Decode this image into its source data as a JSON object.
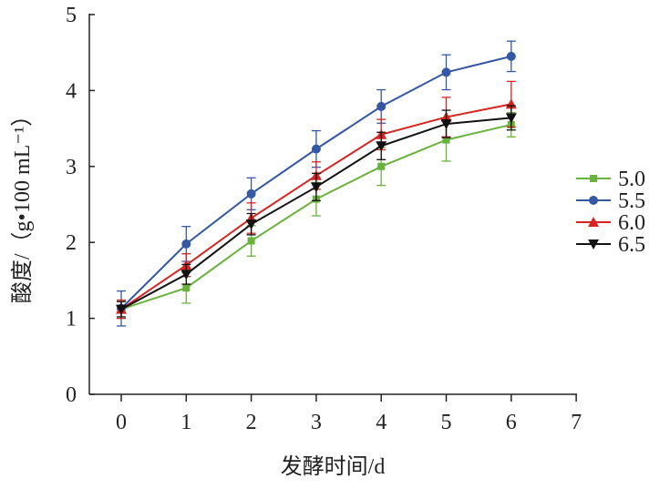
{
  "chart_data": {
    "type": "line",
    "title": "",
    "xlabel": "发酵时间/d",
    "ylabel": "酸度/（g•100 mL⁻¹）",
    "xlim": [
      0,
      7
    ],
    "ylim": [
      0,
      5
    ],
    "x_ticks": [
      "0",
      "1",
      "2",
      "3",
      "4",
      "5",
      "6",
      "7"
    ],
    "y_ticks": [
      "0",
      "1",
      "2",
      "3",
      "4",
      "5"
    ],
    "grid": false,
    "legend_position": "right",
    "x": [
      0,
      1,
      2,
      3,
      4,
      5,
      6
    ],
    "series": [
      {
        "name": "5.0",
        "color": "#6ab23e",
        "marker": "square",
        "values": [
          1.12,
          1.4,
          2.02,
          2.57,
          3.0,
          3.35,
          3.55
        ],
        "errors": [
          0.12,
          0.2,
          0.2,
          0.22,
          0.25,
          0.28,
          0.16
        ]
      },
      {
        "name": "5.5",
        "color": "#3457a6",
        "marker": "circle",
        "values": [
          1.13,
          1.98,
          2.64,
          3.23,
          3.79,
          4.24,
          4.45
        ],
        "errors": [
          0.23,
          0.23,
          0.21,
          0.24,
          0.22,
          0.23,
          0.2
        ]
      },
      {
        "name": "6.0",
        "color": "#d8231f",
        "marker": "triangle-up",
        "values": [
          1.12,
          1.7,
          2.32,
          2.88,
          3.42,
          3.65,
          3.82
        ],
        "errors": [
          0.12,
          0.15,
          0.2,
          0.18,
          0.2,
          0.26,
          0.3
        ]
      },
      {
        "name": "6.5",
        "color": "#111111",
        "marker": "triangle-down",
        "values": [
          1.12,
          1.58,
          2.24,
          2.73,
          3.27,
          3.56,
          3.64
        ],
        "errors": [
          0.1,
          0.13,
          0.14,
          0.18,
          0.18,
          0.18,
          0.16
        ]
      }
    ]
  }
}
